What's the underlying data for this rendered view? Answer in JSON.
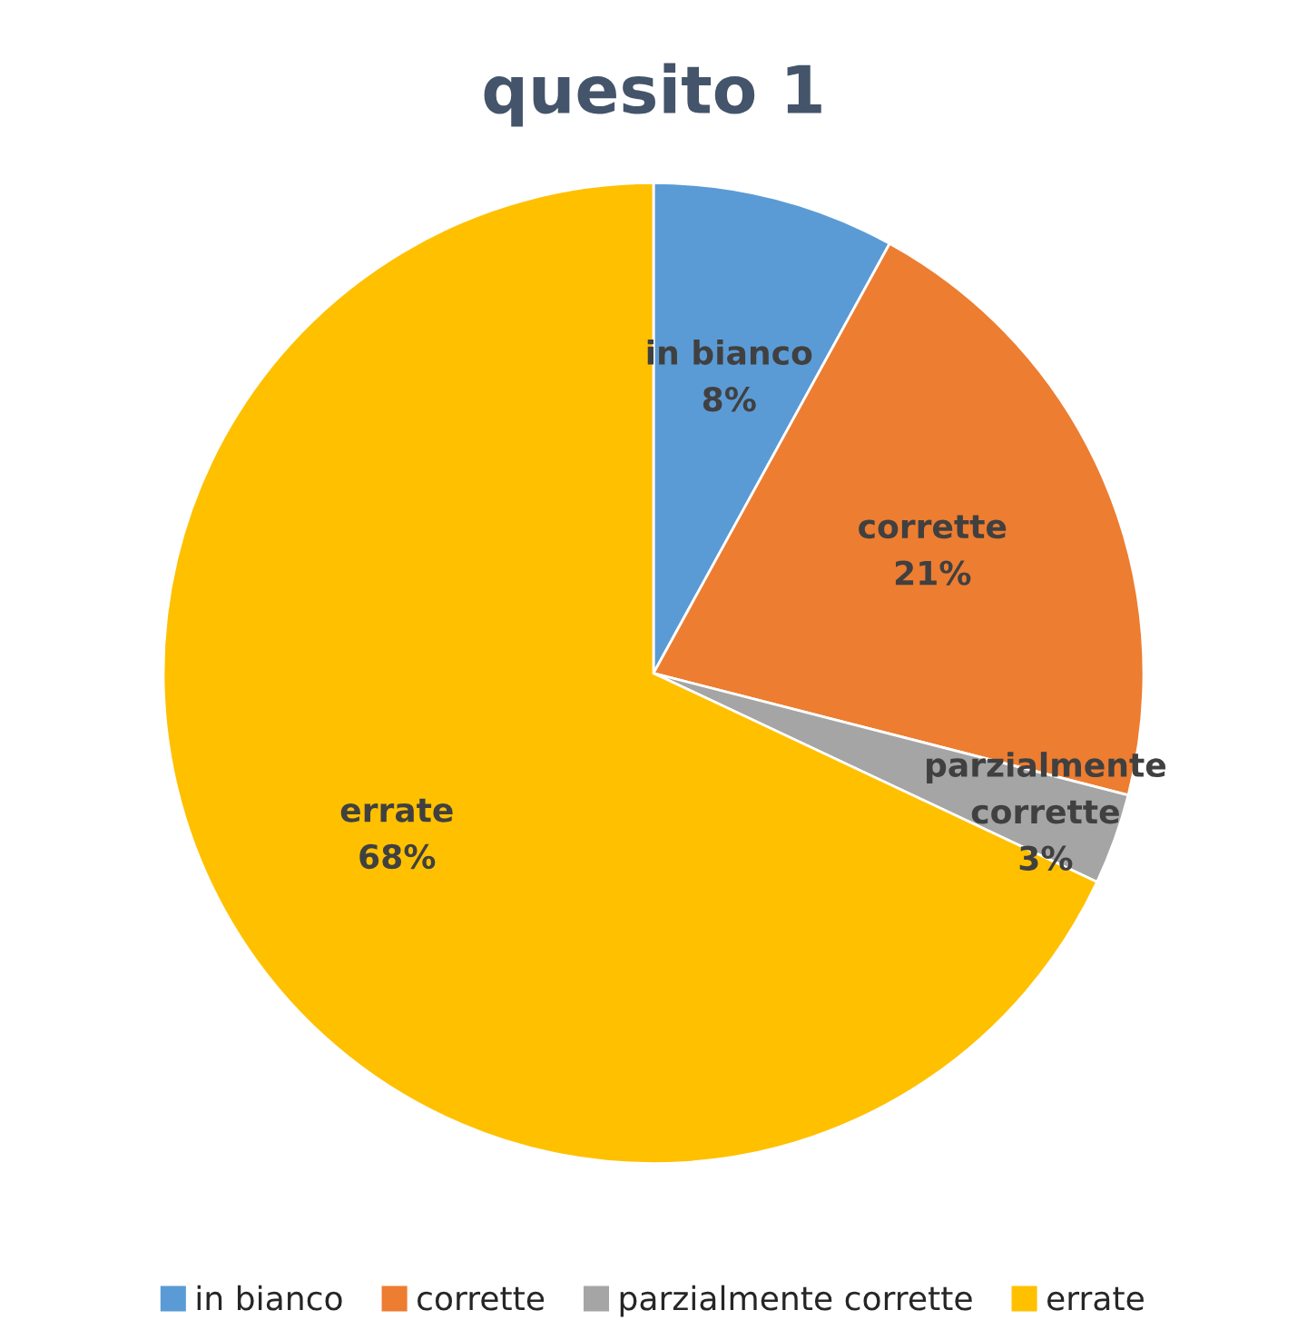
{
  "chart_data": {
    "type": "pie",
    "title": "quesito 1",
    "categories": [
      "in bianco",
      "corrette",
      "parzialmente corrette",
      "errate"
    ],
    "values": [
      8,
      21,
      3,
      68
    ],
    "value_labels": [
      "8%",
      "21%",
      "3%",
      "68%"
    ],
    "colors": [
      "#5b9bd5",
      "#ed7d31",
      "#a5a5a5",
      "#ffc000"
    ],
    "legend": "bottom"
  }
}
